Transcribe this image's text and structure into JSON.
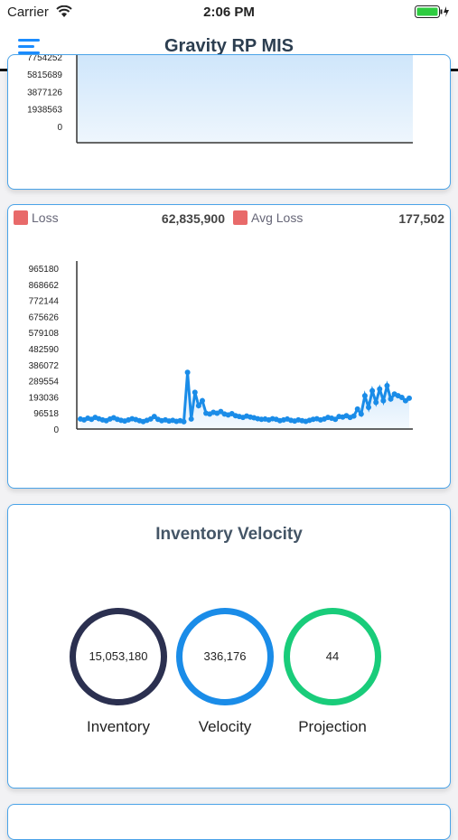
{
  "status_bar": {
    "carrier": "Carrier",
    "time": "2:06 PM"
  },
  "nav": {
    "title": "Gravity RP MIS",
    "menu_icon": "hamburger-menu-icon"
  },
  "top_chart": {
    "chart_data": {
      "type": "area",
      "y_ticks": [
        "7754252",
        "5815689",
        "3877126",
        "1938563",
        "0"
      ],
      "values": []
    }
  },
  "loss_card": {
    "legend": [
      {
        "label": "Loss",
        "value": "62,835,900",
        "color": "#e86a6a"
      },
      {
        "label": "Avg Loss",
        "value": "177,502",
        "color": "#e86a6a"
      }
    ],
    "chart_data": {
      "type": "line",
      "y_ticks": [
        "965180",
        "868662",
        "772144",
        "675626",
        "579108",
        "482590",
        "386072",
        "289554",
        "193036",
        "96518",
        "0"
      ],
      "ylim": [
        0,
        965180
      ],
      "line_color": "#1a8ce8",
      "values": [
        60000,
        55000,
        65000,
        58000,
        70000,
        62000,
        55000,
        50000,
        60000,
        68000,
        58000,
        52000,
        48000,
        55000,
        62000,
        57000,
        50000,
        45000,
        52000,
        60000,
        75000,
        58000,
        50000,
        55000,
        48000,
        52000,
        46000,
        50000,
        44000,
        340000,
        60000,
        220000,
        140000,
        170000,
        95000,
        90000,
        100000,
        95000,
        105000,
        90000,
        85000,
        92000,
        80000,
        75000,
        70000,
        78000,
        72000,
        68000,
        62000,
        58000,
        60000,
        55000,
        62000,
        58000,
        50000,
        55000,
        60000,
        52000,
        48000,
        55000,
        50000,
        46000,
        52000,
        58000,
        62000,
        55000,
        60000,
        70000,
        65000,
        58000,
        75000,
        72000,
        80000,
        70000,
        78000,
        120000,
        90000,
        200000,
        130000,
        230000,
        160000,
        240000,
        170000,
        260000,
        180000,
        210000,
        200000,
        190000,
        170000,
        185000
      ]
    }
  },
  "velocity_card": {
    "title": "Inventory Velocity",
    "gauges": [
      {
        "label": "Inventory",
        "value": "15,053,180",
        "color": "#2b3050"
      },
      {
        "label": "Velocity",
        "value": "336,176",
        "color": "#1a8ce8"
      },
      {
        "label": "Projection",
        "value": "44",
        "color": "#19cc7a"
      }
    ]
  }
}
